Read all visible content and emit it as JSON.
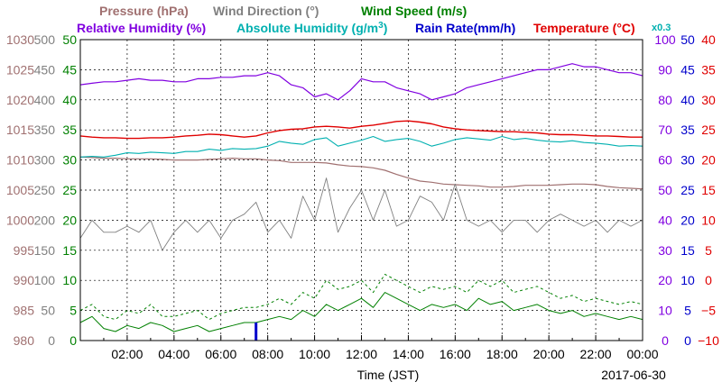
{
  "chart_data": {
    "type": "line",
    "x_start_label": "",
    "xlabel": "Time (JST)",
    "date_label": "2017-06-30",
    "x_ticks": [
      "02:00",
      "04:00",
      "06:00",
      "08:00",
      "10:00",
      "12:00",
      "14:00",
      "16:00",
      "18:00",
      "20:00",
      "22:00",
      "00:00"
    ],
    "x_hours": [
      0,
      0.5,
      1,
      1.5,
      2,
      2.5,
      3,
      3.5,
      4,
      4.5,
      5,
      5.5,
      6,
      6.5,
      7,
      7.5,
      8,
      8.5,
      9,
      9.5,
      10,
      10.5,
      11,
      11.5,
      12,
      12.5,
      13,
      13.5,
      14,
      14.5,
      15,
      15.5,
      16,
      16.5,
      17,
      17.5,
      18,
      18.5,
      19,
      19.5,
      20,
      20.5,
      21,
      21.5,
      22,
      22.5,
      23,
      23.5,
      24
    ],
    "legend": {
      "pressure": {
        "label": "Pressure (hPa)",
        "color": "#a07070"
      },
      "wind_direction": {
        "label": "Wind Direction (°)",
        "color": "#808080"
      },
      "wind_speed": {
        "label": "Wind Speed (m/s)",
        "color": "#008000"
      },
      "relative_humidity": {
        "label": "Relative Humidity (%)",
        "color": "#8000e0"
      },
      "absolute_humidity": {
        "label": "Absolute Humidity (g/m",
        "sup": "3",
        "close": ")",
        "color": "#00b0b0"
      },
      "rain_rate": {
        "label": "Rain Rate(mm/h)",
        "color": "#0000cc"
      },
      "temperature": {
        "label": "Temperature (°C)",
        "color": "#e00000"
      },
      "abs_scale_note": "x0.3"
    },
    "axes": {
      "pressure": {
        "ticks": [
          "1030",
          "1025",
          "1020",
          "1015",
          "1010",
          "1005",
          "1000",
          "995",
          "990",
          "985",
          "980"
        ],
        "range": [
          980,
          1030
        ],
        "color": "#a07070"
      },
      "wind_direction": {
        "ticks": [
          "500",
          "450",
          "400",
          "350",
          "300",
          "250",
          "200",
          "150",
          "100",
          "50",
          "0"
        ],
        "range": [
          0,
          500
        ],
        "color": "#808080"
      },
      "wind_speed": {
        "ticks": [
          "50",
          "45",
          "40",
          "35",
          "30",
          "25",
          "20",
          "15",
          "10",
          "5",
          "0"
        ],
        "range": [
          0,
          50
        ],
        "color": "#008000"
      },
      "relative_humidity": {
        "ticks": [
          "100",
          "90",
          "80",
          "70",
          "60",
          "50",
          "40",
          "30",
          "20",
          "10",
          "0"
        ],
        "range": [
          0,
          100
        ],
        "color": "#8000e0"
      },
      "rain_rate": {
        "ticks": [
          "50",
          "45",
          "40",
          "35",
          "30",
          "25",
          "20",
          "15",
          "10",
          "5",
          "0"
        ],
        "range": [
          0,
          50
        ],
        "color": "#0000cc"
      },
      "temperature": {
        "ticks": [
          "40",
          "35",
          "30",
          "25",
          "20",
          "15",
          "10",
          "5",
          "0",
          "−5",
          "−10"
        ],
        "range": [
          -10,
          40
        ],
        "color": "#e00000"
      }
    },
    "series": [
      {
        "key": "pressure",
        "range": [
          980,
          1030
        ],
        "values": [
          1010.5,
          1010.4,
          1010.3,
          1010.3,
          1010.2,
          1010.2,
          1010.2,
          1010.1,
          1010,
          1010,
          1010,
          1010.1,
          1010.2,
          1010.3,
          1010.2,
          1010.2,
          1010,
          1009.9,
          1009.6,
          1009.6,
          1009.6,
          1009.5,
          1009.2,
          1009,
          1008.9,
          1008.7,
          1008.3,
          1007.6,
          1007,
          1006.5,
          1006.3,
          1006,
          1005.9,
          1005.8,
          1005.7,
          1005.5,
          1005.5,
          1005.6,
          1005.8,
          1005.8,
          1005.8,
          1005.9,
          1006,
          1006,
          1005.9,
          1005.6,
          1005.4,
          1005.3,
          1005.2
        ]
      },
      {
        "key": "relative_humidity",
        "range": [
          0,
          100
        ],
        "values": [
          85,
          85.5,
          86,
          86,
          86.5,
          87,
          86.5,
          86.5,
          86,
          86,
          87,
          87,
          87.5,
          87.5,
          88,
          88,
          89,
          88,
          85,
          84,
          81,
          82,
          80,
          83,
          87,
          86,
          86,
          84,
          83,
          82,
          80,
          81,
          82,
          84,
          85,
          86,
          87,
          88,
          89,
          90,
          90,
          91,
          92,
          91,
          91,
          90,
          89,
          89,
          88
        ]
      },
      {
        "key": "temperature",
        "range": [
          -10,
          40
        ],
        "values": [
          24,
          23.8,
          23.7,
          23.7,
          23.6,
          23.6,
          23.7,
          23.7,
          23.8,
          24,
          24.1,
          24.3,
          24.2,
          24,
          23.8,
          24,
          24.5,
          24.9,
          25.1,
          25.2,
          25.5,
          25.6,
          25.5,
          25.3,
          25.6,
          25.8,
          26.1,
          26.4,
          26.5,
          26.3,
          26,
          25.5,
          25.2,
          25,
          24.9,
          24.8,
          24.7,
          24.7,
          24.6,
          24.5,
          24.3,
          24.2,
          24.2,
          24.1,
          24,
          24,
          23.9,
          23.8,
          23.8
        ]
      },
      {
        "key": "absolute_humidity",
        "range": [
          -10,
          40
        ],
        "values": [
          20.5,
          20.6,
          20.5,
          20.8,
          21.2,
          21.1,
          21.3,
          21.2,
          21.1,
          21.4,
          21.4,
          21.8,
          21.6,
          21.9,
          21.8,
          21.9,
          22.3,
          23.1,
          22.8,
          22.6,
          23.4,
          23.7,
          22.3,
          22.8,
          23.3,
          23.9,
          23.1,
          23.4,
          23.6,
          23.1,
          22.3,
          22.8,
          23.4,
          23.7,
          23.5,
          23.3,
          23.9,
          23.4,
          23.6,
          23.3,
          23.1,
          23,
          23.2,
          22.9,
          22.8,
          22.6,
          22.3,
          22.4,
          22.3
        ]
      },
      {
        "key": "wind_direction",
        "range": [
          0,
          500
        ],
        "values": [
          170,
          200,
          180,
          180,
          190,
          180,
          200,
          150,
          180,
          200,
          180,
          200,
          170,
          200,
          210,
          230,
          180,
          200,
          170,
          240,
          200,
          270,
          180,
          220,
          250,
          200,
          250,
          190,
          200,
          240,
          230,
          200,
          260,
          200,
          190,
          200,
          180,
          200,
          200,
          180,
          200,
          210,
          200,
          190,
          200,
          180,
          200,
          190,
          200
        ]
      },
      {
        "key": "wind_speed",
        "range": [
          0,
          50
        ],
        "values": [
          3,
          4,
          2,
          1.5,
          2.5,
          2,
          3,
          2.5,
          1.5,
          2,
          2.5,
          1.5,
          2,
          2.5,
          3,
          3,
          3.5,
          4,
          3.5,
          5,
          4,
          6,
          5,
          6,
          7,
          5.5,
          8,
          7,
          6,
          5,
          6,
          5.5,
          6,
          5,
          7,
          6,
          6.5,
          5,
          5.5,
          6,
          5,
          4.5,
          5,
          4,
          4.5,
          4,
          3.5,
          4,
          3.5
        ]
      },
      {
        "key": "wind_gust",
        "range": [
          0,
          50
        ],
        "values": [
          5,
          6,
          4,
          3.5,
          5,
          4.5,
          6,
          4,
          4,
          4.5,
          5,
          3.5,
          4.5,
          5,
          5.5,
          5.5,
          6,
          7,
          6,
          8,
          7,
          10,
          8.5,
          9,
          10,
          8,
          11,
          10,
          9,
          8,
          9,
          8.5,
          9,
          8,
          10,
          9,
          10,
          8,
          8.5,
          9,
          8,
          7,
          7.5,
          6.5,
          7,
          6.5,
          6,
          6.5,
          6
        ]
      },
      {
        "key": "rain_rate",
        "range": [
          0,
          50
        ],
        "values": [
          0,
          0,
          0,
          0,
          0,
          0,
          0,
          0,
          0,
          0,
          0,
          0,
          0,
          0,
          0,
          3,
          0,
          0,
          0,
          0,
          0,
          0,
          0,
          0,
          0,
          0,
          0,
          0,
          0,
          0,
          0,
          0,
          0,
          0,
          0,
          0,
          0,
          0,
          0,
          0,
          0,
          0,
          0,
          0,
          0,
          0,
          0,
          0,
          0
        ]
      }
    ]
  }
}
